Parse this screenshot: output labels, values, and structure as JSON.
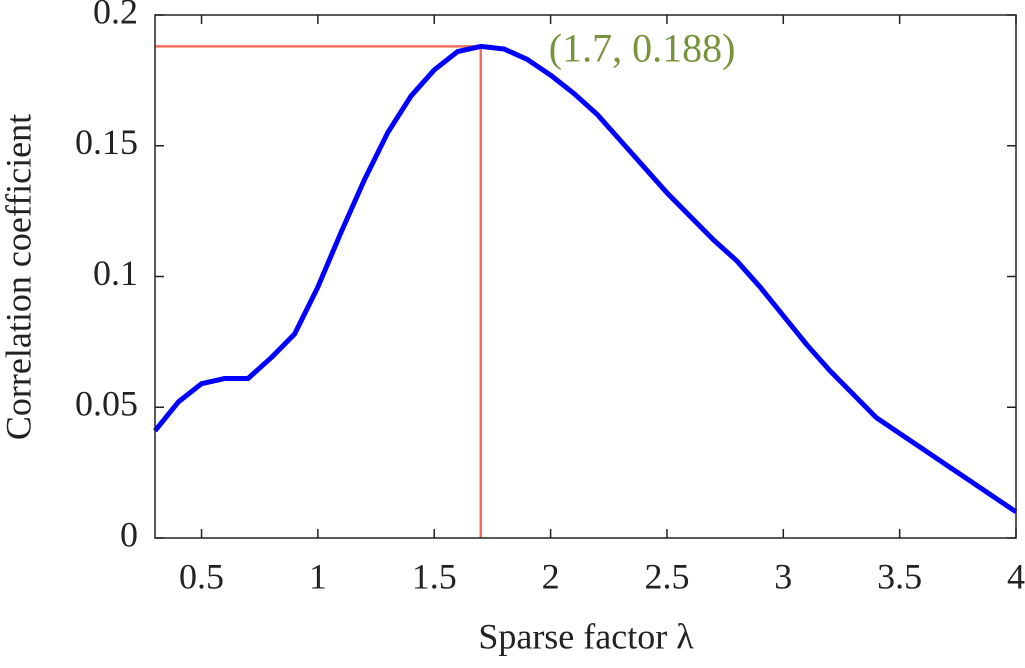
{
  "chart_data": {
    "type": "line",
    "xlabel": "Sparse factor λ",
    "ylabel": "Correlation coefficient",
    "x": [
      0.3,
      0.4,
      0.5,
      0.6,
      0.7,
      0.8,
      0.9,
      1.0,
      1.1,
      1.2,
      1.3,
      1.4,
      1.5,
      1.6,
      1.7,
      1.8,
      1.9,
      2.0,
      2.1,
      2.2,
      2.3,
      2.4,
      2.5,
      2.6,
      2.7,
      2.8,
      2.9,
      3.0,
      3.1,
      3.2,
      3.3,
      3.4,
      3.5,
      3.6,
      3.7,
      3.8,
      3.9,
      4.0
    ],
    "values": [
      0.041,
      0.052,
      0.059,
      0.061,
      0.061,
      0.069,
      0.078,
      0.096,
      0.117,
      0.137,
      0.155,
      0.169,
      0.179,
      0.186,
      0.188,
      0.187,
      0.183,
      0.177,
      0.17,
      0.162,
      0.152,
      0.142,
      0.132,
      0.123,
      0.114,
      0.106,
      0.096,
      0.085,
      0.074,
      0.064,
      0.055,
      0.046,
      0.04,
      0.034,
      0.028,
      0.022,
      0.016,
      0.01
    ],
    "color": "#0000ff",
    "xlim": [
      0.3,
      4
    ],
    "ylim": [
      0,
      0.2
    ],
    "xticks": [
      0.5,
      1,
      1.5,
      2,
      2.5,
      3,
      3.5,
      4
    ],
    "yticks": [
      0,
      0.05,
      0.1,
      0.15,
      0.2
    ],
    "highlight": {
      "x": 1.7,
      "y": 0.188,
      "label": "(1.7, 0.188)",
      "line_color": "#f07060",
      "label_color": "#77933c"
    }
  }
}
